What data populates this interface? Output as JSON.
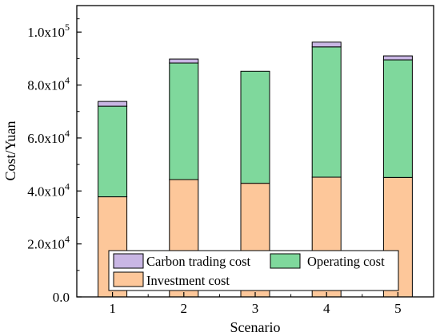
{
  "chart_data": {
    "type": "bar",
    "stacked": true,
    "categories": [
      "1",
      "2",
      "3",
      "4",
      "5"
    ],
    "series": [
      {
        "name": "Investment cost",
        "color": "#FDC79A",
        "values": [
          37800,
          44300,
          42900,
          45200,
          45100
        ]
      },
      {
        "name": "Operating cost",
        "color": "#7FD89C",
        "values": [
          34200,
          44000,
          42300,
          49200,
          44400
        ]
      },
      {
        "name": "Carbon trading cost",
        "color": "#C9B6E4",
        "values": [
          1800,
          1500,
          0,
          1800,
          1500
        ]
      }
    ],
    "xlabel": "Scenario",
    "ylabel": "Cost/Yuan",
    "ylim": [
      0,
      110000
    ],
    "yticks": [
      {
        "value": 0,
        "mantissa": "0.0",
        "exp": ""
      },
      {
        "value": 20000,
        "mantissa": "2.0x10",
        "exp": "4"
      },
      {
        "value": 40000,
        "mantissa": "4.0x10",
        "exp": "4"
      },
      {
        "value": 60000,
        "mantissa": "6.0x10",
        "exp": "4"
      },
      {
        "value": 80000,
        "mantissa": "8.0x10",
        "exp": "4"
      },
      {
        "value": 100000,
        "mantissa": "1.0x10",
        "exp": "5"
      }
    ],
    "grid": false,
    "legend_position": "bottom-center",
    "legend_order": [
      "Carbon trading cost",
      "Operating cost",
      "Investment cost"
    ]
  }
}
